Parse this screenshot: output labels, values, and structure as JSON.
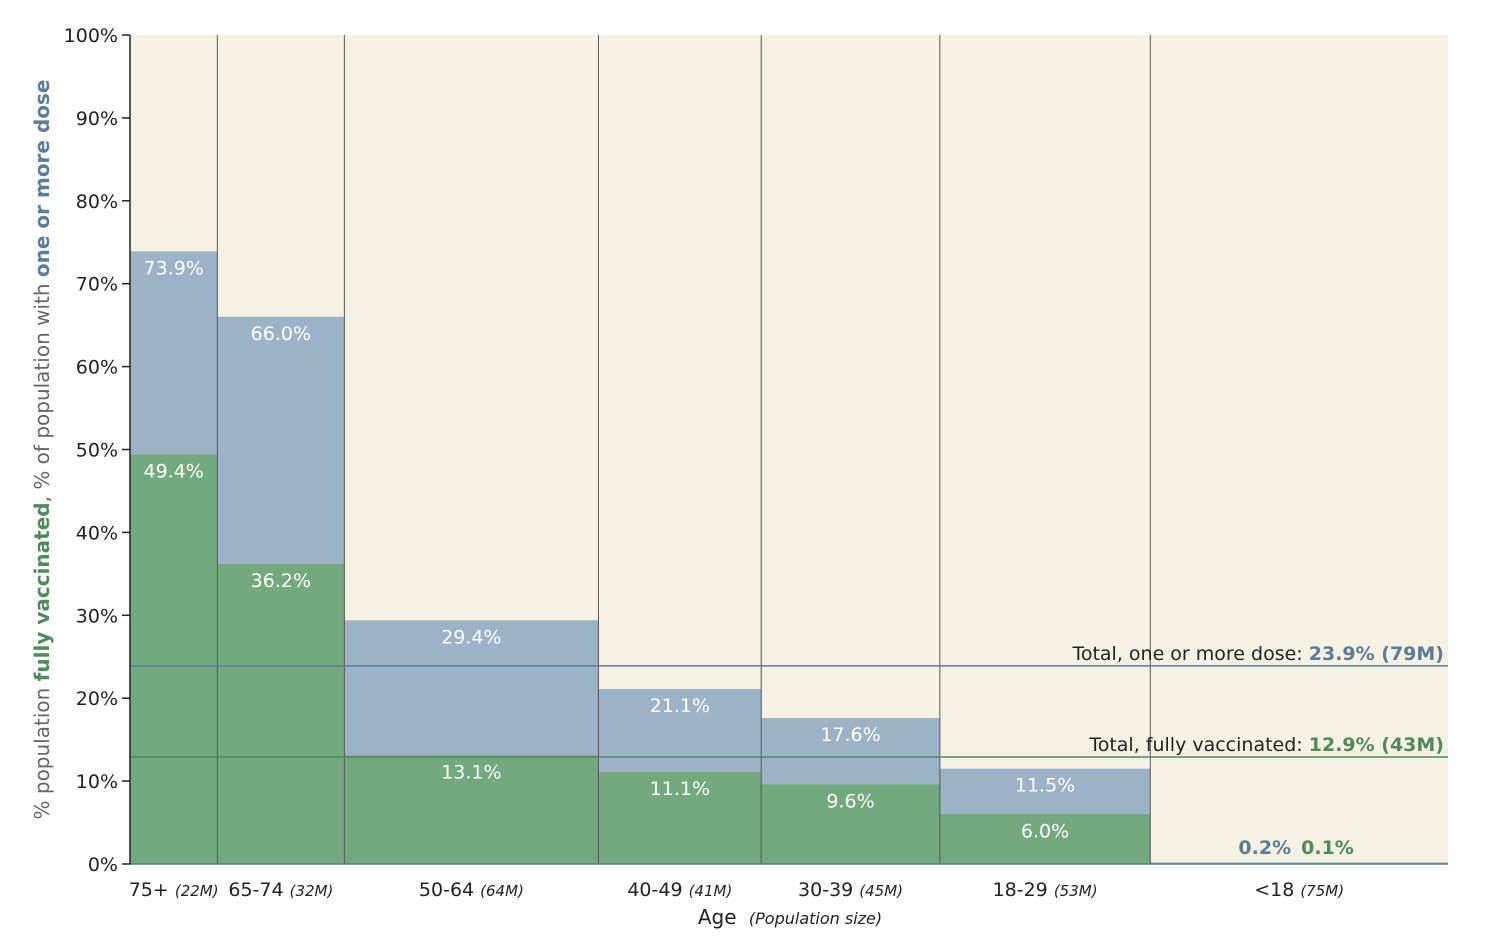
{
  "colors": {
    "background": "#f5f2e4",
    "one_dose": "#9bb2c7",
    "fully": "#72aa7e",
    "one_dose_text": "#5b7c9a",
    "fully_text": "#4f8a5b",
    "divider": "#555555"
  },
  "chart_data": {
    "type": "bar",
    "subtype": "variable-width (marimekko) overlapping bars",
    "xlabel": "Age",
    "xlabel_note": "(Population size)",
    "ylabel_parts": [
      "% population ",
      "fully vaccinated",
      ", % of population with ",
      "one or more dose"
    ],
    "ylim": [
      0,
      100
    ],
    "yticks": [
      "0%",
      "10%",
      "20%",
      "30%",
      "40%",
      "50%",
      "60%",
      "70%",
      "80%",
      "90%",
      "100%"
    ],
    "categories": [
      {
        "age": "75+",
        "pop_label": "(22M)",
        "population_m": 22,
        "one_dose": 73.9,
        "fully": 49.4,
        "one_dose_label": "73.9%",
        "fully_label": "49.4%"
      },
      {
        "age": "65-74",
        "pop_label": "(32M)",
        "population_m": 32,
        "one_dose": 66.0,
        "fully": 36.2,
        "one_dose_label": "66.0%",
        "fully_label": "36.2%"
      },
      {
        "age": "50-64",
        "pop_label": "(64M)",
        "population_m": 64,
        "one_dose": 29.4,
        "fully": 13.1,
        "one_dose_label": "29.4%",
        "fully_label": "13.1%"
      },
      {
        "age": "40-49",
        "pop_label": "(41M)",
        "population_m": 41,
        "one_dose": 21.1,
        "fully": 11.1,
        "one_dose_label": "21.1%",
        "fully_label": "11.1%"
      },
      {
        "age": "30-39",
        "pop_label": "(45M)",
        "population_m": 45,
        "one_dose": 17.6,
        "fully": 9.6,
        "one_dose_label": "17.6%",
        "fully_label": "9.6%"
      },
      {
        "age": "18-29",
        "pop_label": "(53M)",
        "population_m": 53,
        "one_dose": 11.5,
        "fully": 6.0,
        "one_dose_label": "11.5%",
        "fully_label": "6.0%"
      },
      {
        "age": "<18",
        "pop_label": "(75M)",
        "population_m": 75,
        "one_dose": 0.2,
        "fully": 0.1,
        "one_dose_label": "0.2%",
        "fully_label": "0.1%"
      }
    ],
    "series": [
      {
        "name": "one or more dose",
        "key": "one_dose"
      },
      {
        "name": "fully vaccinated",
        "key": "fully"
      }
    ],
    "reference_lines": [
      {
        "key": "one_dose",
        "value": 23.9,
        "label": "Total, one or more dose: ",
        "value_label": "23.9% (79M)"
      },
      {
        "key": "fully",
        "value": 12.9,
        "label": "Total, fully vaccinated: ",
        "value_label": "12.9% (43M)"
      }
    ],
    "grid": false
  }
}
